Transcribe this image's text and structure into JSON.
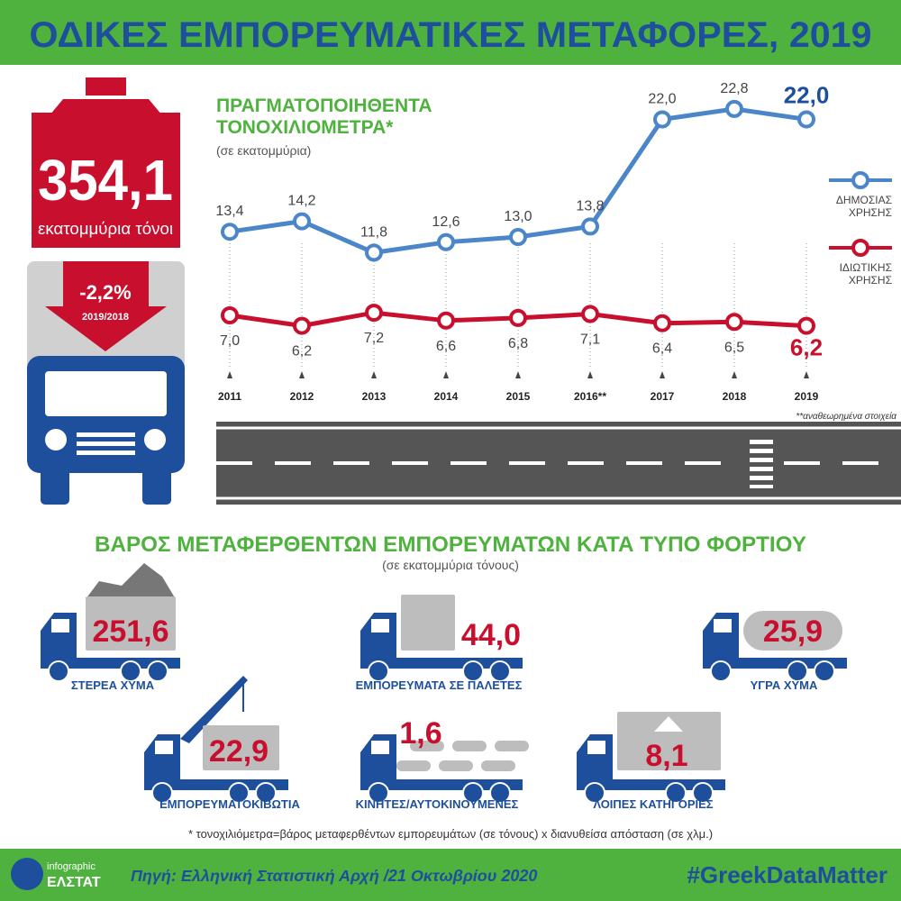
{
  "header": {
    "title": "ΟΔΙΚΕΣ ΕΜΠΟΡΕΥΜΑΤΙΚΕΣ ΜΕΤΑΦΟΡΕΣ, 2019"
  },
  "total": {
    "value": "354,1",
    "unit": "εκατομμύρια τόνοι",
    "change": "-2,2%",
    "change_period": "2019/2018"
  },
  "chart_data": {
    "type": "line",
    "title": "ΠΡΑΓΜΑΤΟΠΟΙΗΘΕΝΤΑ ΤΟΝΟΧΙΛΙΟΜΕΤΡΑ*",
    "subtitle": "(σε εκατομμύρια)",
    "categories": [
      "2011",
      "2012",
      "2013",
      "2014",
      "2015",
      "2016**",
      "2017",
      "2018",
      "2019"
    ],
    "series": [
      {
        "name": "ΔΗΜΟΣΙΑΣ ΧΡΗΣΗΣ",
        "color": "#4a86c8",
        "values": [
          13.4,
          14.2,
          11.8,
          12.6,
          13.0,
          13.8,
          22.0,
          22.8,
          22.0
        ],
        "value_labels": [
          "13,4",
          "14,2",
          "11,8",
          "12,6",
          "13,0",
          "13,8",
          "22,0",
          "22,8",
          "22,0"
        ]
      },
      {
        "name": "ΙΔΙΩΤΙΚΗΣ ΧΡΗΣΗΣ",
        "color": "#c8102e",
        "values": [
          7.0,
          6.2,
          7.2,
          6.6,
          6.8,
          7.1,
          6.4,
          6.5,
          6.2
        ],
        "value_labels": [
          "7,0",
          "6,2",
          "7,2",
          "6,6",
          "6,8",
          "7,1",
          "6,4",
          "6,5",
          "6,2"
        ]
      }
    ],
    "annotation": "**αναθεωρημένα στοιχεία"
  },
  "cargo": {
    "title": "ΒΑΡΟΣ ΜΕΤΑΦΕΡΘΕΝΤΩΝ ΕΜΠΟΡΕΥΜΑΤΩΝ ΚΑΤΑ ΤΥΠΟ ΦΟΡΤΙΟΥ",
    "subtitle": "(σε εκατομμύρια τόνους)",
    "items": [
      {
        "label": "ΣΤΕΡΕΑ ΧΥΜΑ",
        "value": "251,6"
      },
      {
        "label": "ΕΜΠΟΡΕΥΜΑΤΑ ΣΕ ΠΑΛΕΤΕΣ",
        "value": "44,0"
      },
      {
        "label": "ΥΓΡΑ ΧΥΜΑ",
        "value": "25,9"
      },
      {
        "label": "ΕΜΠΟΡΕΥΜΑΤΟΚΙΒΩΤΙΑ",
        "value": "22,9"
      },
      {
        "label": "ΚΙΝΗΤΕΣ/ΑΥΤΟΚΙΝΟΥΜΕΝΕΣ",
        "value": "1,6"
      },
      {
        "label": "ΛΟΙΠΕΣ ΚΑΤΗΓΟΡΙΕΣ",
        "value": "8,1"
      }
    ]
  },
  "footnote": "* τονοχιλιόμετρα=βάρος μεταφερθέντων εμπορευμάτων (σε τόνους) x διανυθείσα απόσταση (σε χλμ.)",
  "footer": {
    "logo_top": "infographic",
    "logo_bottom": "ΕΛΣΤΑΤ",
    "source": "Πηγή: Ελληνική Στατιστική Αρχή /21 Οκτωβρίου 2020",
    "hashtag": "#GreekDataMatter"
  }
}
